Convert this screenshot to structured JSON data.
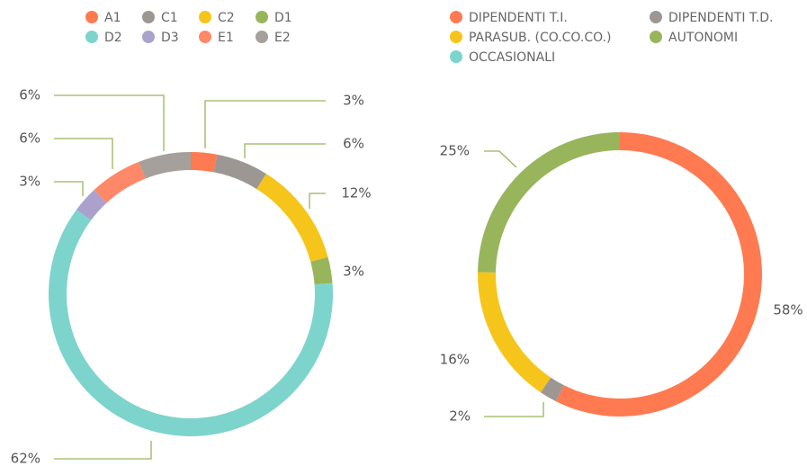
{
  "chart_data": [
    {
      "type": "donut",
      "categories": [
        "A1",
        "C1",
        "C2",
        "D1",
        "D2",
        "D3",
        "E1",
        "E2"
      ],
      "values": [
        3,
        6,
        12,
        3,
        62,
        3,
        6,
        6
      ],
      "value_labels": [
        "3%",
        "6%",
        "12%",
        "3%",
        "62%",
        "3%",
        "6%",
        "6%"
      ],
      "colors": [
        "#ff7a50",
        "#9c9792",
        "#f6c51b",
        "#98b55c",
        "#7dd4cc",
        "#aaa2cd",
        "#ff8868",
        "#a5a09b"
      ]
    },
    {
      "type": "donut",
      "categories": [
        "DIPENDENTI T.I.",
        "DIPENDENTI T.D.",
        "PARASUB. (CO.CO.CO.)",
        "AUTONOMI",
        "OCCASIONALI"
      ],
      "values": [
        58,
        2,
        16,
        25,
        0
      ],
      "value_labels": [
        "58%",
        "2%",
        "16%",
        "25%",
        null
      ],
      "colors": [
        "#ff7a50",
        "#9c9792",
        "#f6c51b",
        "#98b55c",
        "#7dd4cc"
      ]
    }
  ]
}
